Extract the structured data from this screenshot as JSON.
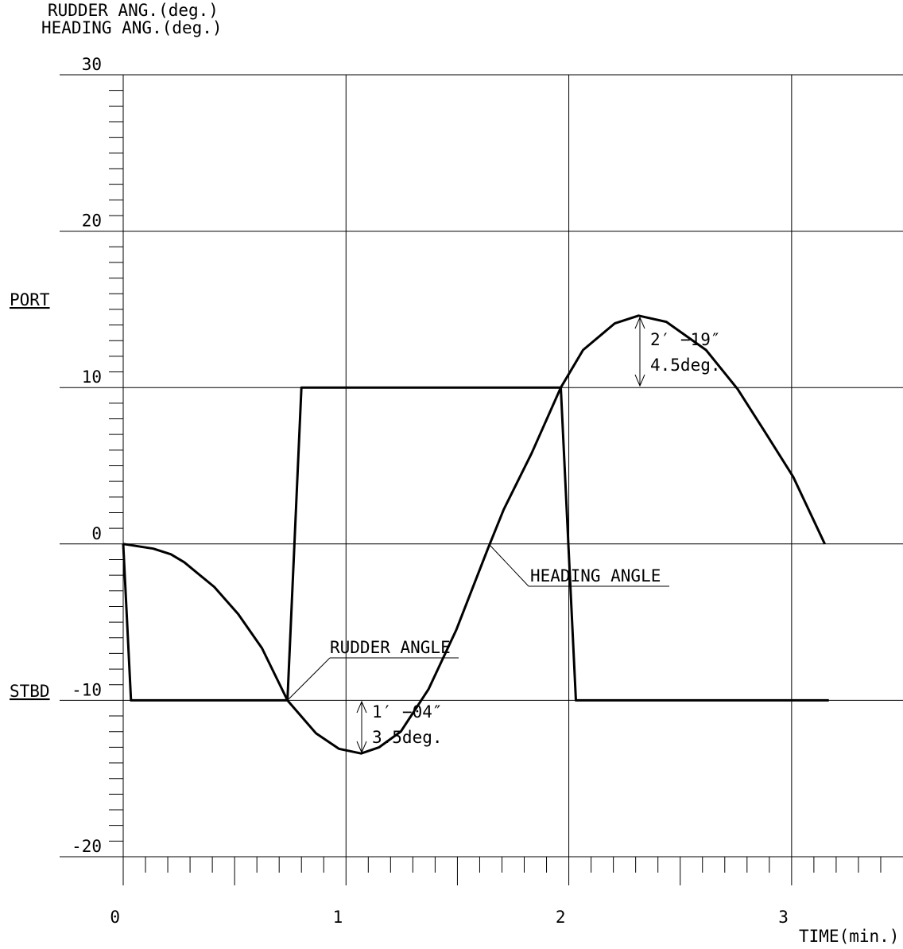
{
  "chart_data": {
    "type": "line",
    "y_label_lines": [
      "RUDDER  ANG.(deg.)",
      "HEADING ANG.(deg.)"
    ],
    "x_label": "TIME(min.)",
    "port_label": "PORT",
    "stbd_label": "STBD",
    "xlim": [
      0,
      3.5
    ],
    "ylim": [
      -20,
      30
    ],
    "xticks": [
      0,
      1,
      2,
      3
    ],
    "yticks": [
      -20,
      -10,
      0,
      10,
      20,
      30
    ],
    "xminor_ticks": [
      0.1,
      0.2,
      0.3,
      0.4,
      0.5,
      0.6,
      0.7,
      0.8,
      0.9,
      1.1,
      1.2,
      1.3,
      1.4,
      1.5,
      1.6,
      1.7,
      1.8,
      1.9,
      2.1,
      2.2,
      2.3,
      2.4,
      2.5,
      2.6,
      2.7,
      2.8,
      2.9,
      3.1,
      3.2,
      3.3,
      3.4
    ],
    "yminor_ticks": [
      -19,
      -18,
      -17,
      -16,
      -15,
      -14,
      -13,
      -12,
      -11,
      -9,
      -8,
      -7,
      -6,
      -5,
      -4,
      -3,
      -2,
      -1,
      1,
      2,
      3,
      4,
      5,
      6,
      7,
      8,
      9,
      11,
      12,
      13,
      14,
      15,
      16,
      17,
      18,
      19,
      21,
      22,
      23,
      24,
      25,
      26,
      27,
      28,
      29
    ],
    "grid": true,
    "series": [
      {
        "name": "RUDDER ANGLE",
        "color": "#000000",
        "x": [
          0,
          0.035,
          0.737,
          0.8,
          1.964,
          2.032,
          3.167
        ],
        "values": [
          0,
          -10,
          -10,
          10,
          10,
          -10,
          -10
        ]
      },
      {
        "name": "HEADING ANGLE",
        "color": "#000000",
        "x": [
          0,
          0.135,
          0.214,
          0.274,
          0.409,
          0.516,
          0.623,
          0.737,
          0.865,
          0.968,
          1.068,
          1.149,
          1.246,
          1.37,
          1.495,
          1.637,
          1.708,
          1.833,
          1.964,
          2.064,
          2.206,
          2.313,
          2.438,
          2.616,
          2.758,
          2.883,
          3.007,
          3.149
        ],
        "values": [
          0,
          -0.3,
          -0.66,
          -1.17,
          -2.75,
          -4.48,
          -6.67,
          -10,
          -12.1,
          -13.1,
          -13.4,
          -13,
          -12,
          -9.3,
          -5.5,
          -0.3,
          2.2,
          5.8,
          10,
          12.4,
          14.1,
          14.6,
          14.2,
          12.4,
          9.9,
          7.1,
          4.3,
          0
        ]
      }
    ],
    "annotations": [
      {
        "lines": [
          "1′ −04″",
          "3.5deg."
        ]
      },
      {
        "lines": [
          "2′ −19″",
          "4.5deg."
        ]
      }
    ]
  }
}
